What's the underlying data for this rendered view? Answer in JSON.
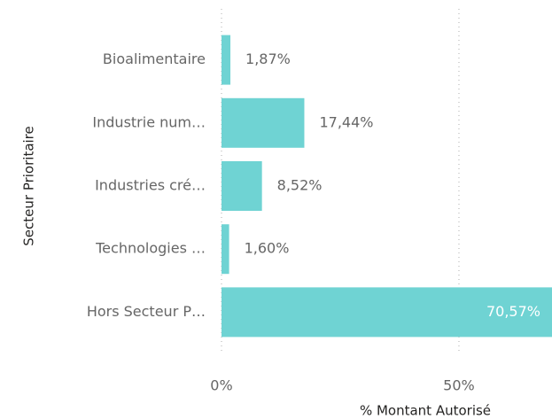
{
  "chart_data": {
    "type": "bar",
    "orientation": "horizontal",
    "y_label": "Secteur Prioritaire",
    "x_label": "% Montant Autorisé",
    "categories": [
      "Bioalimentaire",
      "Industrie num…",
      "Industries cré…",
      "Technologies …",
      "Hors Secteur P…"
    ],
    "values": [
      1.87,
      17.44,
      8.52,
      1.6,
      70.57
    ],
    "value_labels": [
      "1,87%",
      "17,44%",
      "8,52%",
      "1,60%",
      "70,57%"
    ],
    "color": "#6fd3d3",
    "xlim": [
      0,
      69.6
    ],
    "xticks": [
      {
        "value": 0,
        "label": "0%"
      },
      {
        "value": 50,
        "label": "50%"
      }
    ],
    "grid": true
  }
}
